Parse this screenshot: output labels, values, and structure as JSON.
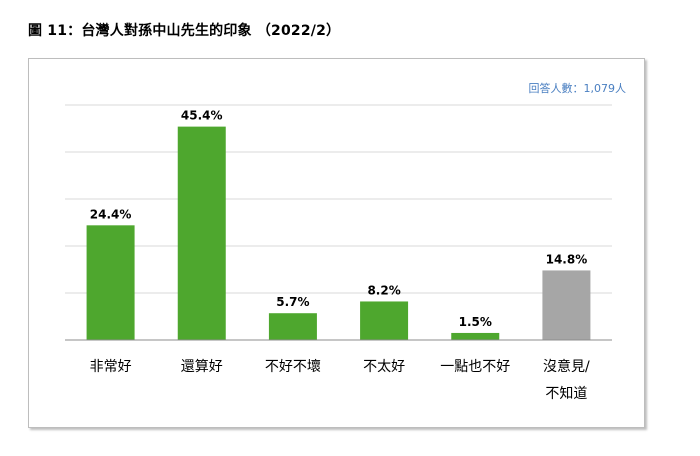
{
  "figure_title": "圖 11：台灣人對孫中山先生的印象 （2022/2）",
  "respondents_label": "回答人數：1,079人",
  "colors": {
    "bar_main": "#4ea72e",
    "bar_neutral": "#a6a6a6",
    "grid": "#d9d9d9",
    "axis": "#8c8c8c",
    "note": "#4a7fc1"
  },
  "chart_data": {
    "type": "bar",
    "title": "",
    "xlabel": "",
    "ylabel": "",
    "ylim": [
      0,
      50
    ],
    "grid": true,
    "categories": [
      "非常好",
      "還算好",
      "不好不壞",
      "不太好",
      "一點也不好",
      "沒意見/\n不知道"
    ],
    "values": [
      24.4,
      45.4,
      5.7,
      8.2,
      1.5,
      14.8
    ],
    "value_labels": [
      "24.4%",
      "45.4%",
      "5.7%",
      "8.2%",
      "1.5%",
      "14.8%"
    ],
    "bar_colors": [
      "#4ea72e",
      "#4ea72e",
      "#4ea72e",
      "#4ea72e",
      "#4ea72e",
      "#a6a6a6"
    ]
  }
}
